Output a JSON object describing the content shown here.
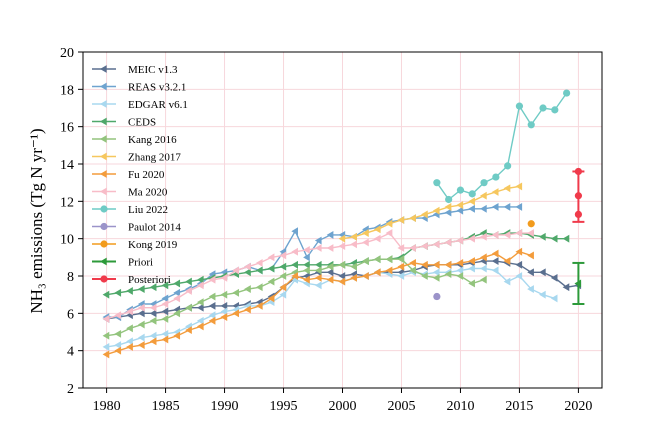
{
  "chart_data": {
    "type": "line",
    "title": "",
    "xlabel": "",
    "ylabel": "NH₃ emissions (Tg N yr⁻¹)",
    "xlim": [
      1978,
      2022
    ],
    "ylim": [
      2,
      20
    ],
    "xticks": [
      1980,
      1985,
      1990,
      1995,
      2000,
      2005,
      2010,
      2015,
      2020
    ],
    "yticks": [
      2,
      4,
      6,
      8,
      10,
      12,
      14,
      16,
      18,
      20
    ],
    "grid": true,
    "legend_position": "top-left",
    "series": [
      {
        "name": "MEIC v1.3",
        "color": "#5a6f8f",
        "marker": "tri",
        "x": [
          1980,
          1981,
          1982,
          1983,
          1984,
          1985,
          1986,
          1987,
          1988,
          1989,
          1990,
          1991,
          1992,
          1993,
          1994,
          1995,
          1996,
          1997,
          1998,
          1999,
          2000,
          2001,
          2002,
          2003,
          2004,
          2005,
          2006,
          2007,
          2008,
          2009,
          2010,
          2011,
          2012,
          2013,
          2014,
          2015,
          2016,
          2017,
          2018,
          2019,
          2020
        ],
        "y": [
          5.7,
          5.8,
          5.9,
          6.0,
          6.0,
          6.1,
          6.2,
          6.3,
          6.3,
          6.4,
          6.4,
          6.4,
          6.5,
          6.6,
          6.9,
          7.4,
          7.9,
          8.0,
          8.2,
          8.2,
          8.0,
          8.1,
          8.0,
          8.2,
          8.2,
          8.2,
          8.3,
          8.5,
          8.6,
          8.6,
          8.6,
          8.7,
          8.8,
          8.8,
          8.7,
          8.6,
          8.2,
          8.2,
          7.9,
          7.4,
          7.5
        ]
      },
      {
        "name": "REAS v3.2.1",
        "color": "#6ea3cf",
        "marker": "tri",
        "x": [
          1980,
          1981,
          1982,
          1983,
          1984,
          1985,
          1986,
          1987,
          1988,
          1989,
          1990,
          1991,
          1992,
          1993,
          1994,
          1995,
          1996,
          1997,
          1998,
          1999,
          2000,
          2001,
          2002,
          2003,
          2004,
          2005,
          2006,
          2007,
          2008,
          2009,
          2010,
          2011,
          2012,
          2013,
          2014,
          2015
        ],
        "y": [
          5.8,
          5.8,
          6.2,
          6.5,
          6.5,
          6.8,
          7.1,
          7.3,
          7.6,
          8.1,
          8.2,
          8.3,
          8.5,
          8.3,
          8.4,
          9.3,
          10.4,
          9.0,
          9.9,
          10.2,
          10.2,
          10.1,
          10.5,
          10.6,
          10.9,
          11.0,
          11.1,
          11.1,
          11.3,
          11.4,
          11.5,
          11.6,
          11.6,
          11.7,
          11.7,
          11.7
        ]
      },
      {
        "name": "EDGAR v6.1",
        "color": "#a8d8ef",
        "marker": "tri",
        "x": [
          1980,
          1981,
          1982,
          1983,
          1984,
          1985,
          1986,
          1987,
          1988,
          1989,
          1990,
          1991,
          1992,
          1993,
          1994,
          1995,
          1996,
          1997,
          1998,
          1999,
          2000,
          2001,
          2002,
          2003,
          2004,
          2005,
          2006,
          2007,
          2008,
          2009,
          2010,
          2011,
          2012,
          2013,
          2014,
          2015,
          2016,
          2017,
          2018
        ],
        "y": [
          4.2,
          4.3,
          4.5,
          4.7,
          4.8,
          4.9,
          5.0,
          5.3,
          5.6,
          5.9,
          6.1,
          6.2,
          6.4,
          6.4,
          6.6,
          7.0,
          7.8,
          7.6,
          7.5,
          7.8,
          7.7,
          7.9,
          8.0,
          8.2,
          8.1,
          8.0,
          8.2,
          8.1,
          8.2,
          8.2,
          8.3,
          8.4,
          8.4,
          8.3,
          7.7,
          8.0,
          7.3,
          7.0,
          6.8
        ]
      },
      {
        "name": "CEDS",
        "color": "#4fa86a",
        "marker": "tri",
        "x": [
          1980,
          1981,
          1982,
          1983,
          1984,
          1985,
          1986,
          1987,
          1988,
          1989,
          1990,
          1991,
          1992,
          1993,
          1994,
          1995,
          1996,
          1997,
          1998,
          1999,
          2000,
          2001,
          2002,
          2003,
          2004,
          2005,
          2006,
          2007,
          2008,
          2009,
          2010,
          2011,
          2012,
          2013,
          2014,
          2015,
          2016,
          2017,
          2018,
          2019
        ],
        "y": [
          7.0,
          7.1,
          7.2,
          7.3,
          7.4,
          7.5,
          7.6,
          7.7,
          7.8,
          7.9,
          8.0,
          8.1,
          8.2,
          8.3,
          8.4,
          8.5,
          8.6,
          8.6,
          8.6,
          8.6,
          8.6,
          8.7,
          8.8,
          8.9,
          8.9,
          9.0,
          9.5,
          9.6,
          9.7,
          9.8,
          9.9,
          10.1,
          10.3,
          10.2,
          10.3,
          10.3,
          10.2,
          10.1,
          10.0,
          10.0
        ]
      },
      {
        "name": "Kang 2016",
        "color": "#93c47d",
        "marker": "tri",
        "x": [
          1980,
          1981,
          1982,
          1983,
          1984,
          1985,
          1986,
          1987,
          1988,
          1989,
          1990,
          1991,
          1992,
          1993,
          1994,
          1995,
          1996,
          1997,
          1998,
          1999,
          2000,
          2001,
          2002,
          2003,
          2004,
          2005,
          2006,
          2007,
          2008,
          2009,
          2010,
          2011,
          2012
        ],
        "y": [
          4.8,
          4.9,
          5.2,
          5.4,
          5.6,
          5.7,
          6.0,
          6.3,
          6.6,
          6.9,
          7.0,
          7.1,
          7.3,
          7.4,
          7.7,
          8.0,
          8.2,
          8.3,
          8.3,
          8.5,
          8.6,
          8.5,
          8.8,
          8.9,
          8.9,
          8.9,
          8.3,
          8.0,
          7.9,
          8.1,
          8.0,
          7.6,
          7.8
        ]
      },
      {
        "name": "Zhang 2017",
        "color": "#f6c75e",
        "marker": "tri",
        "x": [
          2000,
          2001,
          2002,
          2003,
          2004,
          2005,
          2006,
          2007,
          2008,
          2009,
          2010,
          2011,
          2012,
          2013,
          2014,
          2015
        ],
        "y": [
          10.0,
          10.1,
          10.3,
          10.5,
          10.8,
          11.0,
          11.1,
          11.3,
          11.5,
          11.7,
          11.8,
          12.0,
          12.3,
          12.5,
          12.7,
          12.8
        ]
      },
      {
        "name": "Fu 2020",
        "color": "#f39c3c",
        "marker": "tri",
        "x": [
          1980,
          1981,
          1982,
          1983,
          1984,
          1985,
          1986,
          1987,
          1988,
          1989,
          1990,
          1991,
          1992,
          1993,
          1994,
          1995,
          1996,
          1997,
          1998,
          1999,
          2000,
          2001,
          2002,
          2003,
          2004,
          2005,
          2006,
          2007,
          2008,
          2009,
          2010,
          2011,
          2012,
          2013,
          2014,
          2015,
          2016
        ],
        "y": [
          3.8,
          4.0,
          4.2,
          4.3,
          4.5,
          4.6,
          4.8,
          5.1,
          5.3,
          5.6,
          5.8,
          6.0,
          6.2,
          6.4,
          6.8,
          7.4,
          8.0,
          7.8,
          7.9,
          7.8,
          7.7,
          7.9,
          8.0,
          8.2,
          8.3,
          8.5,
          8.7,
          8.6,
          8.6,
          8.6,
          8.7,
          8.8,
          9.0,
          9.2,
          8.8,
          9.3,
          9.1
        ]
      },
      {
        "name": "Ma 2020",
        "color": "#f8bcc8",
        "marker": "tri",
        "x": [
          1980,
          1981,
          1982,
          1983,
          1984,
          1985,
          1986,
          1987,
          1988,
          1989,
          1990,
          1991,
          1992,
          1993,
          1994,
          1995,
          1996,
          1997,
          1998,
          1999,
          2000,
          2001,
          2002,
          2003,
          2004,
          2005,
          2006,
          2007,
          2008,
          2009,
          2010,
          2011,
          2012,
          2013,
          2014,
          2015,
          2016
        ],
        "y": [
          5.7,
          5.9,
          6.1,
          6.3,
          6.3,
          6.5,
          6.8,
          7.2,
          7.5,
          7.8,
          7.9,
          8.3,
          8.5,
          8.7,
          9.0,
          9.1,
          9.3,
          9.4,
          9.5,
          9.5,
          9.6,
          9.7,
          9.8,
          10.0,
          10.3,
          9.5,
          9.5,
          9.6,
          9.7,
          9.8,
          9.9,
          10.0,
          10.1,
          10.2,
          10.2,
          10.3,
          10.3
        ]
      },
      {
        "name": "Liu 2022",
        "color": "#6fcbc5",
        "marker": "circle",
        "x": [
          2008,
          2009,
          2010,
          2011,
          2012,
          2013,
          2014,
          2015,
          2016,
          2017,
          2018,
          2019
        ],
        "y": [
          13.0,
          12.1,
          12.6,
          12.4,
          13.0,
          13.3,
          13.9,
          17.1,
          16.1,
          17.0,
          16.9,
          17.8
        ]
      },
      {
        "name": "Paulot 2014",
        "color": "#9b93c9",
        "marker": "circle",
        "x": [
          2008
        ],
        "y": [
          6.9
        ]
      },
      {
        "name": "Kong 2019",
        "color": "#f29b1d",
        "marker": "circle",
        "x": [
          2016
        ],
        "y": [
          10.8
        ]
      },
      {
        "name": "Priori",
        "color": "#2d9a3a",
        "marker": "errorbar",
        "x": [
          2020
        ],
        "y": [
          7.6
        ],
        "ymin": [
          6.5
        ],
        "ymax": [
          8.7
        ]
      },
      {
        "name": "Posteriori",
        "color": "#f03a4b",
        "marker": "errorbar",
        "x": [
          2020
        ],
        "y": [
          12.3
        ],
        "ymin": [
          10.9
        ],
        "ymax": [
          13.6
        ],
        "points": [
          11.3,
          12.3,
          13.6
        ]
      }
    ]
  }
}
